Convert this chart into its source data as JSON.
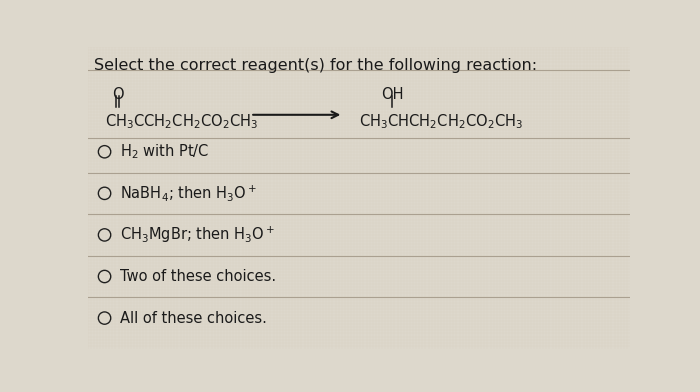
{
  "title": "Select the correct reagent(s) for the following reaction:",
  "background_color": "#ddd8cc",
  "text_color": "#1a1a1a",
  "divider_color": "#aaa090",
  "title_fontsize": 11.5,
  "body_fontsize": 10.5,
  "chem_fontsize": 10.5,
  "reaction": {
    "reactant": "CH$_3$CCH$_2$CH$_2$CO$_2$CH$_3$",
    "product": "CH$_3$CHCH$_2$CH$_2$CO$_2$CH$_3$",
    "carbonyl_o": "O",
    "hydroxyl_oh": "OH"
  },
  "choices": [
    [
      "H$_2$ with Pt/C"
    ],
    [
      "NaBH$_4$; then H$_3$O$^+$"
    ],
    [
      "CH$_3$MgBr; then H$_3$O$^+$"
    ],
    [
      "Two of these choices."
    ],
    [
      "All of these choices."
    ]
  ]
}
